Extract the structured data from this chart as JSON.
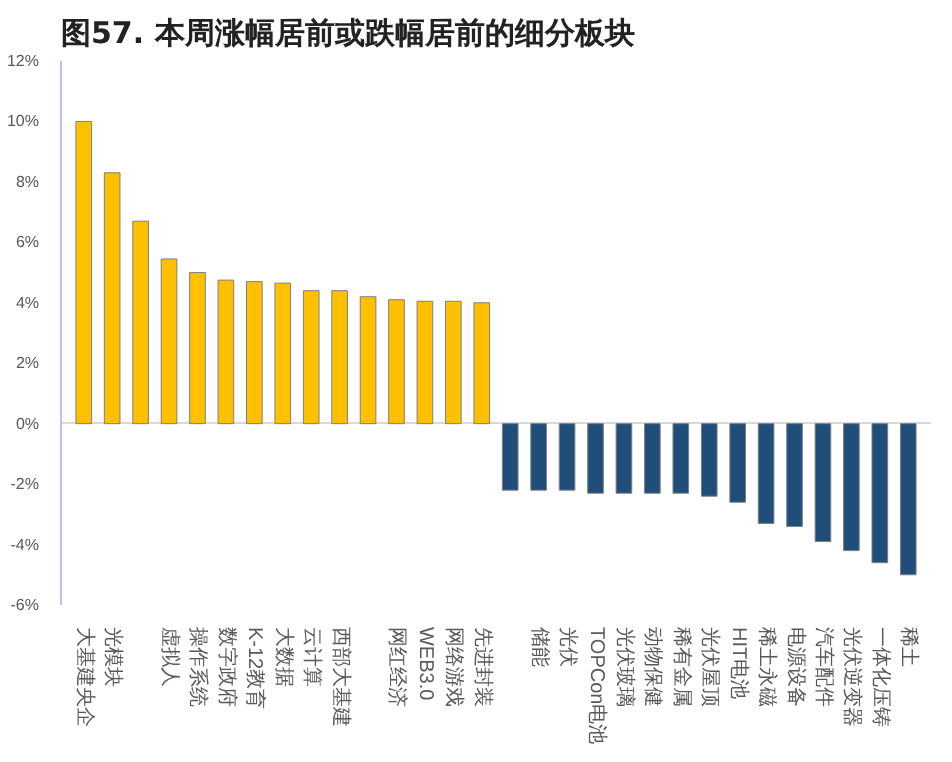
{
  "chart_data": {
    "type": "bar",
    "title": "图57. 本周涨幅居前或跌幅居前的细分板块",
    "categories": [
      "大基建央企",
      "光模块",
      null,
      "虚拟人",
      "操作系统",
      "数字政府",
      "K-12教育",
      "大数据",
      "云计算",
      "西部大基建",
      null,
      "网红经济",
      "WEB3.0",
      "网络游戏",
      "先进封装",
      null,
      "储能",
      "光伏",
      "TOPCon电池",
      "光伏玻璃",
      "动物保健",
      "稀有金属",
      "光伏屋顶",
      "HIT电池",
      "稀土永磁",
      "电源设备",
      "汽车配件",
      "光伏逆变器",
      "一体化压铸",
      "稀土"
    ],
    "values": [
      10.0,
      8.3,
      6.7,
      5.45,
      5.0,
      4.75,
      4.7,
      4.65,
      4.4,
      4.4,
      4.2,
      4.1,
      4.05,
      4.05,
      4.0,
      -2.2,
      -2.2,
      -2.2,
      -2.3,
      -2.3,
      -2.3,
      -2.3,
      -2.4,
      -2.6,
      -3.3,
      -3.4,
      -3.9,
      -4.2,
      -4.6,
      -5.0
    ],
    "colors": [
      "#ffc000",
      "#ffc000",
      "#ffc000",
      "#ffc000",
      "#ffc000",
      "#ffc000",
      "#ffc000",
      "#ffc000",
      "#ffc000",
      "#ffc000",
      "#ffc000",
      "#ffc000",
      "#ffc000",
      "#ffc000",
      "#ffc000",
      "#1f4e79",
      "#1f4e79",
      "#1f4e79",
      "#1f4e79",
      "#1f4e79",
      "#1f4e79",
      "#1f4e79",
      "#1f4e79",
      "#1f4e79",
      "#1f4e79",
      "#1f4e79",
      "#1f4e79",
      "#1f4e79",
      "#1f4e79",
      "#1f4e79"
    ],
    "ylim": [
      -6,
      12
    ],
    "yticks": [
      {
        "value": -6,
        "label": "-6%"
      },
      {
        "value": -4,
        "label": "-4%"
      },
      {
        "value": -2,
        "label": "-2%"
      },
      {
        "value": 0,
        "label": "0%"
      },
      {
        "value": 2,
        "label": "2%"
      },
      {
        "value": 4,
        "label": "4%"
      },
      {
        "value": 6,
        "label": "6%"
      },
      {
        "value": 8,
        "label": "8%"
      },
      {
        "value": 10,
        "label": "10%"
      },
      {
        "value": 12,
        "label": "12%"
      }
    ],
    "grid": "y"
  }
}
